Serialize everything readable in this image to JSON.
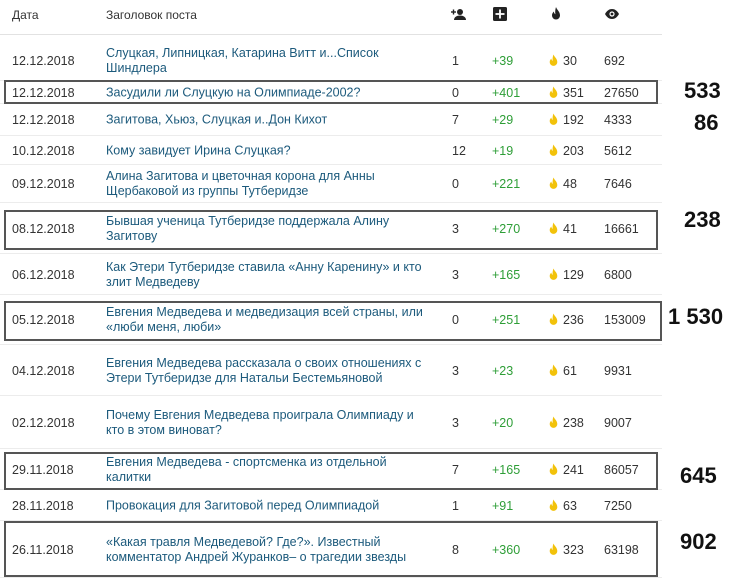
{
  "header": {
    "date_label": "Дата",
    "title_label": "Заголовок поста",
    "icons": [
      "add-user-icon",
      "plus-square-icon",
      "fire-icon",
      "eye-icon"
    ]
  },
  "colors": {
    "link": "#1c5a7c",
    "positive": "#2e9e37",
    "fire": "#f2c20a",
    "border": "#555555"
  },
  "rows": [
    {
      "date": "12.12.2018",
      "title": "Слуцкая, Липницкая, Катарина Витт и...Список Шиндлера",
      "comments": "1",
      "rating": "+39",
      "fire": "30",
      "views": "692"
    },
    {
      "date": "12.12.2018",
      "title": "Засудили ли Слуцкую на Олимпиаде-2002?",
      "comments": "0",
      "rating": "+401",
      "fire": "351",
      "views": "27650"
    },
    {
      "date": "12.12.2018",
      "title": "Загитова, Хьюз, Слуцкая и..Дон Кихот",
      "comments": "7",
      "rating": "+29",
      "fire": "192",
      "views": "4333"
    },
    {
      "date": "10.12.2018",
      "title": "Кому завидует Ирина Слуцкая?",
      "comments": "12",
      "rating": "+19",
      "fire": "203",
      "views": "5612"
    },
    {
      "date": "09.12.2018",
      "title": "Алина Загитова и цветочная корона для Анны Щербаковой из группы Тутберидзе",
      "comments": "0",
      "rating": "+221",
      "fire": "48",
      "views": "7646"
    },
    {
      "date": "08.12.2018",
      "title": "Бывшая ученица Тутберидзе поддержала Алину Загитову",
      "comments": "3",
      "rating": "+270",
      "fire": "41",
      "views": "16661"
    },
    {
      "date": "06.12.2018",
      "title": "Как Этери Тутберидзе ставила «Анну Каренину» и кто злит Медведеву",
      "comments": "3",
      "rating": "+165",
      "fire": "129",
      "views": "6800"
    },
    {
      "date": "05.12.2018",
      "title": "Евгения Медведева и медведизация всей страны, или «люби меня, люби»",
      "comments": "0",
      "rating": "+251",
      "fire": "236",
      "views": "153009"
    },
    {
      "date": "04.12.2018",
      "title": "Евгения Медведева рассказала о своих отношениях с Этери Тутберидзе для Натальи Бестемьяновой",
      "comments": "3",
      "rating": "+23",
      "fire": "61",
      "views": "9931"
    },
    {
      "date": "02.12.2018",
      "title": "Почему Евгения Медведева проиграла Олимпиаду и кто в этом виноват?",
      "comments": "3",
      "rating": "+20",
      "fire": "238",
      "views": "9007"
    },
    {
      "date": "29.11.2018",
      "title": "Евгения Медведева - спортсменка из отдельной калитки",
      "comments": "7",
      "rating": "+165",
      "fire": "241",
      "views": "86057"
    },
    {
      "date": "28.11.2018",
      "title": "Провокация для Загитовой перед Олимпиадой",
      "comments": "1",
      "rating": "+91",
      "fire": "63",
      "views": "7250"
    },
    {
      "date": "26.11.2018",
      "title": "«Какая травля Медведевой? Где?». Известный комментатор Андрей Журанков– о трагедии звезды",
      "comments": "8",
      "rating": "+360",
      "fire": "323",
      "views": "63198"
    }
  ],
  "annotations": [
    "533",
    "86",
    "238",
    "1 530",
    "645",
    "902"
  ]
}
